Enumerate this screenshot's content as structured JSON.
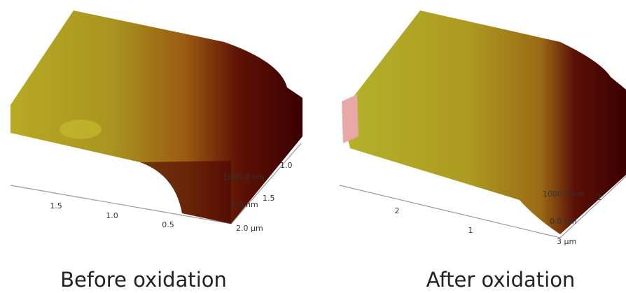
{
  "panels": [
    {
      "caption": "Before oxidation",
      "x_axis_labels": [
        "1.5",
        "1.0",
        "0.5"
      ],
      "y_axis_labels": [
        "1.0",
        "1.5",
        "2.0 µm"
      ],
      "z_axis_labels": [
        "1000.0 nm",
        "0.0 nm"
      ]
    },
    {
      "caption": "After oxidation",
      "x_axis_labels": [
        "2",
        "1"
      ],
      "y_axis_labels": [
        "2",
        "3 µm"
      ],
      "z_axis_labels": [
        "1000.0 nm",
        "0.0 nm"
      ]
    }
  ]
}
